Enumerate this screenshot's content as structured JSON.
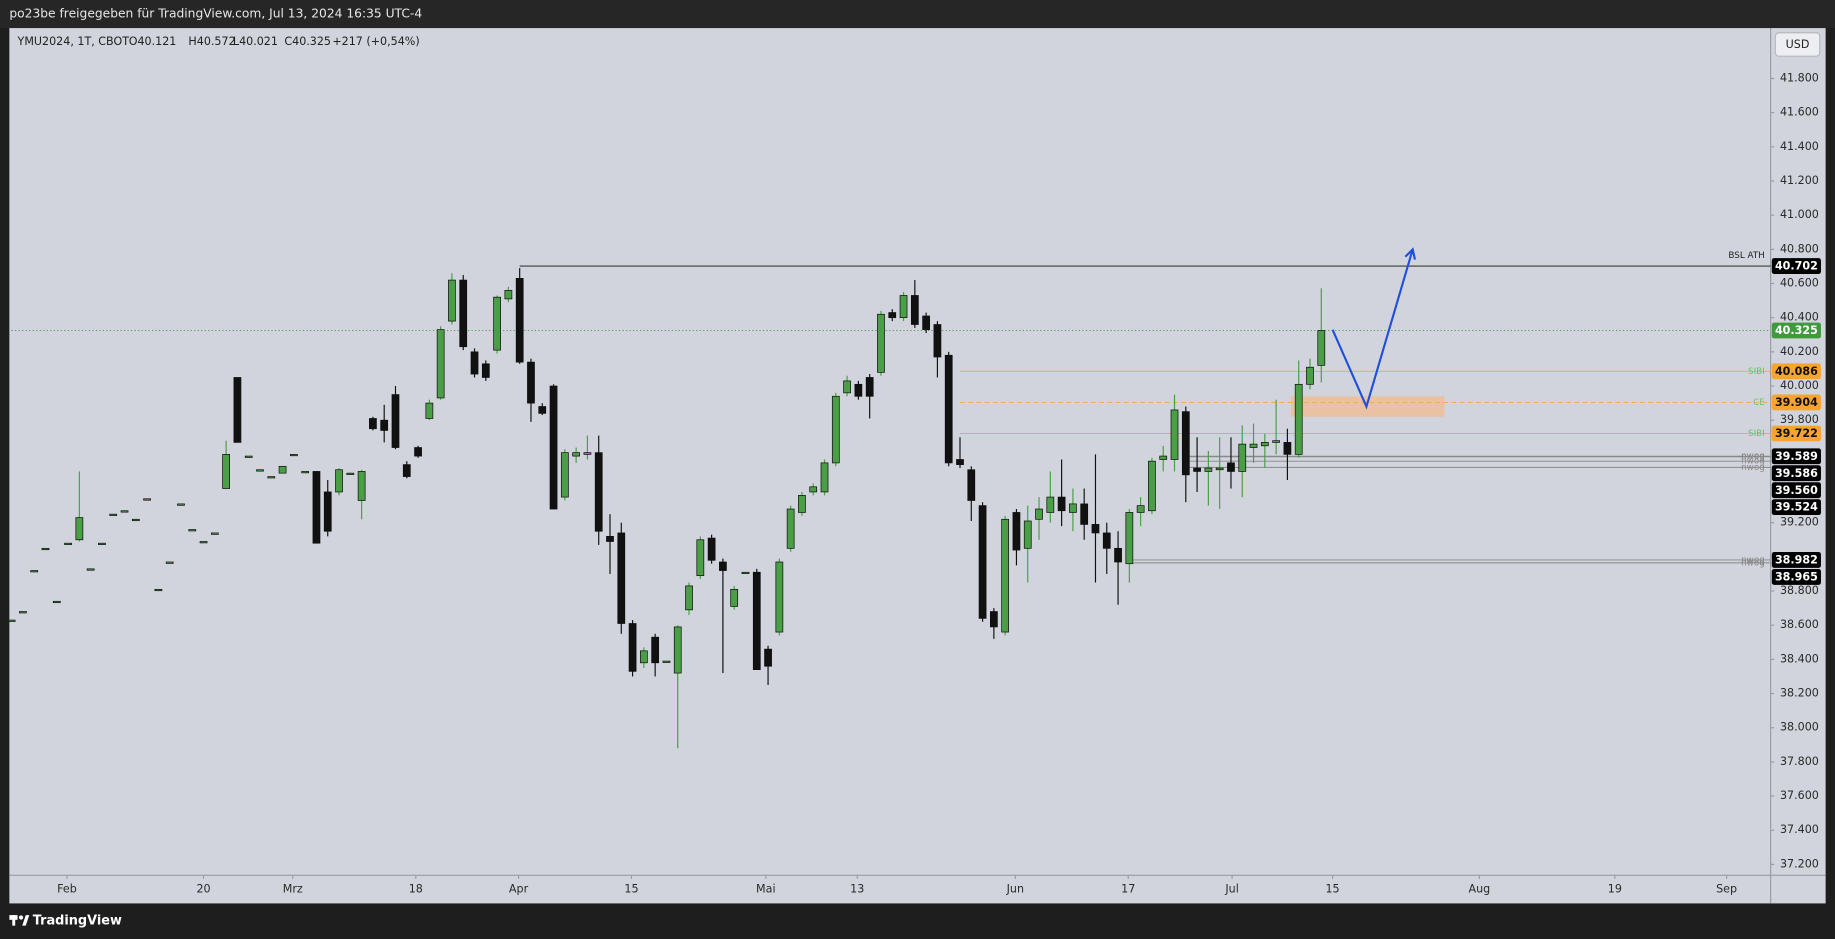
{
  "header": {
    "title": "po23be freigegeben für TradingView.com, Jul 13, 2024 16:35 UTC-4",
    "symbol": "YMU2024, 1T, CBOT",
    "ohlc": [
      "O40.121",
      "H40.572",
      "L40.021",
      "C40.325",
      "+217 (+0,54%)"
    ],
    "currency": "USD"
  },
  "footer": {
    "brand": "TradingView"
  },
  "chart_data": {
    "type": "candlestick",
    "up_color": "#4a9e45",
    "down_color": "#111111",
    "x": [
      0,
      1,
      2,
      3,
      4,
      5,
      6,
      7,
      8,
      9,
      10,
      11,
      12,
      13,
      14,
      15,
      16,
      17,
      18,
      19,
      20,
      21,
      22,
      23,
      24,
      25,
      26,
      27,
      28,
      29,
      30,
      31,
      32,
      33,
      34,
      35,
      36,
      37,
      38,
      39,
      40,
      41,
      42,
      43,
      44,
      45,
      46,
      47,
      48,
      49,
      50,
      51,
      52,
      53,
      54,
      55,
      56,
      57,
      58,
      59,
      60,
      61,
      62,
      63,
      64,
      65,
      66,
      67,
      68,
      69,
      70,
      71,
      72,
      73,
      74,
      75,
      76,
      77,
      78,
      79,
      80,
      81,
      82,
      83,
      84,
      85,
      86,
      87,
      88,
      89,
      90,
      91,
      92,
      93,
      94,
      95,
      96,
      97,
      98,
      99,
      100,
      101,
      102,
      103,
      104,
      105,
      106,
      107,
      108,
      109,
      110,
      111,
      112,
      113,
      114,
      115,
      116
    ],
    "open": [
      38.63,
      38.68,
      38.92,
      39.05,
      38.74,
      39.08,
      39.1,
      38.93,
      39.08,
      39.25,
      39.27,
      39.22,
      39.34,
      38.81,
      38.97,
      39.31,
      39.16,
      39.09,
      39.14,
      39.4,
      40.05,
      39.59,
      39.51,
      39.47,
      39.49,
      39.6,
      39.5,
      39.5,
      39.38,
      39.38,
      39.49,
      39.33,
      39.81,
      39.8,
      39.95,
      39.54,
      39.64,
      39.81,
      39.93,
      40.38,
      40.62,
      40.2,
      40.13,
      40.21,
      40.51,
      40.63,
      40.14,
      39.88,
      40.0,
      39.35,
      39.59,
      39.6,
      39.61,
      39.12,
      39.14,
      38.61,
      38.38,
      38.53,
      38.39,
      38.32,
      38.69,
      38.89,
      39.11,
      38.97,
      38.71,
      38.91,
      38.91,
      38.46,
      38.56,
      39.05,
      39.26,
      39.38,
      39.38,
      39.55,
      39.96,
      40.01,
      40.05,
      40.08,
      40.43,
      40.4,
      40.53,
      40.41,
      40.36,
      40.18,
      39.57,
      39.51,
      39.3,
      38.68,
      38.56,
      39.26,
      39.05,
      39.22,
      39.26,
      39.35,
      39.26,
      39.31,
      39.19,
      39.14,
      39.05,
      38.96,
      39.26,
      39.27,
      39.57,
      39.57,
      39.85,
      39.52,
      39.5,
      39.51,
      39.55,
      39.5,
      39.64,
      39.65,
      39.67,
      39.67,
      39.6,
      40.01,
      40.121
    ],
    "high": [
      38.63,
      38.68,
      38.92,
      39.05,
      38.74,
      39.08,
      39.5,
      38.93,
      39.08,
      39.25,
      39.27,
      39.22,
      39.34,
      38.81,
      38.97,
      39.31,
      39.16,
      39.09,
      39.14,
      39.68,
      40.05,
      39.59,
      39.51,
      39.47,
      39.53,
      39.6,
      39.5,
      39.5,
      39.45,
      39.52,
      39.49,
      39.51,
      39.82,
      39.89,
      40.0,
      39.56,
      39.65,
      39.92,
      40.35,
      40.66,
      40.65,
      40.22,
      40.15,
      40.53,
      40.58,
      40.69,
      40.16,
      39.9,
      40.01,
      39.63,
      39.64,
      39.71,
      39.71,
      39.25,
      39.2,
      38.63,
      38.47,
      38.55,
      38.39,
      38.6,
      38.85,
      39.12,
      39.13,
      38.99,
      38.83,
      38.91,
      38.93,
      38.48,
      38.99,
      39.3,
      39.38,
      39.43,
      39.57,
      39.96,
      40.06,
      40.03,
      40.07,
      40.44,
      40.45,
      40.55,
      40.62,
      40.43,
      40.38,
      40.2,
      39.7,
      39.53,
      39.32,
      38.7,
      39.24,
      39.28,
      39.3,
      39.35,
      39.5,
      39.57,
      39.4,
      39.4,
      39.6,
      39.2,
      39.15,
      39.28,
      39.35,
      39.58,
      39.65,
      39.95,
      39.88,
      39.7,
      39.62,
      39.7,
      39.7,
      39.77,
      39.78,
      39.72,
      39.92,
      39.75,
      40.15,
      40.16,
      40.572
    ],
    "low": [
      38.63,
      38.68,
      38.92,
      39.05,
      38.74,
      39.08,
      39.09,
      38.93,
      39.08,
      39.25,
      39.27,
      39.22,
      39.34,
      38.81,
      38.97,
      39.31,
      39.16,
      39.09,
      39.14,
      39.4,
      39.67,
      39.59,
      39.51,
      39.47,
      39.49,
      39.6,
      39.5,
      39.08,
      39.12,
      39.36,
      39.49,
      39.22,
      39.74,
      39.67,
      39.63,
      39.46,
      39.58,
      39.8,
      39.92,
      40.36,
      40.21,
      40.05,
      40.03,
      40.19,
      40.49,
      40.13,
      39.79,
      39.83,
      39.28,
      39.33,
      39.55,
      39.57,
      39.07,
      38.9,
      38.55,
      38.3,
      38.35,
      38.3,
      38.39,
      37.88,
      38.66,
      38.87,
      38.96,
      38.32,
      38.69,
      38.91,
      38.34,
      38.25,
      38.54,
      39.03,
      39.24,
      39.36,
      39.36,
      39.53,
      39.94,
      39.92,
      39.81,
      40.06,
      40.38,
      40.38,
      40.34,
      40.31,
      40.05,
      39.53,
      39.52,
      39.21,
      38.62,
      38.52,
      38.54,
      38.95,
      38.85,
      39.1,
      39.2,
      39.18,
      39.15,
      39.1,
      38.85,
      38.9,
      38.72,
      38.85,
      39.18,
      39.25,
      39.5,
      39.5,
      39.32,
      39.38,
      39.3,
      39.28,
      39.4,
      39.35,
      39.55,
      39.52,
      39.6,
      39.45,
      39.58,
      39.98,
      40.021
    ],
    "close": [
      38.63,
      38.68,
      38.92,
      39.05,
      38.74,
      39.08,
      39.23,
      38.93,
      39.08,
      39.25,
      39.27,
      39.22,
      39.34,
      38.81,
      38.97,
      39.31,
      39.16,
      39.09,
      39.14,
      39.6,
      39.67,
      39.59,
      39.51,
      39.47,
      39.53,
      39.6,
      39.5,
      39.08,
      39.15,
      39.51,
      39.49,
      39.5,
      39.75,
      39.74,
      39.64,
      39.47,
      39.59,
      39.9,
      40.33,
      40.62,
      40.23,
      40.07,
      40.05,
      40.52,
      40.56,
      40.14,
      39.9,
      39.84,
      39.28,
      39.61,
      39.61,
      39.61,
      39.15,
      39.09,
      38.61,
      38.33,
      38.45,
      38.38,
      38.39,
      38.59,
      38.83,
      39.1,
      38.98,
      38.92,
      38.81,
      38.91,
      38.34,
      38.36,
      38.97,
      39.28,
      39.36,
      39.41,
      39.55,
      39.94,
      40.03,
      39.94,
      39.94,
      40.42,
      40.4,
      40.53,
      40.36,
      40.33,
      40.17,
      39.55,
      39.54,
      39.33,
      38.64,
      38.59,
      39.22,
      39.04,
      39.21,
      39.28,
      39.35,
      39.27,
      39.31,
      39.19,
      39.14,
      39.05,
      38.97,
      39.26,
      39.3,
      39.56,
      39.59,
      39.86,
      39.48,
      39.5,
      39.52,
      39.52,
      39.5,
      39.66,
      39.66,
      39.67,
      39.68,
      39.6,
      40.01,
      40.11,
      40.325
    ],
    "xlim": [
      -0.2,
      155.8
    ],
    "xticks": [
      {
        "value": 4.9,
        "label": "Feb"
      },
      {
        "value": 17.0,
        "label": "20"
      },
      {
        "value": 24.9,
        "label": "Mrz"
      },
      {
        "value": 35.8,
        "label": "18"
      },
      {
        "value": 44.9,
        "label": "Apr"
      },
      {
        "value": 54.9,
        "label": "15"
      },
      {
        "value": 66.8,
        "label": "Mai"
      },
      {
        "value": 74.9,
        "label": "13"
      },
      {
        "value": 88.9,
        "label": "Jun"
      },
      {
        "value": 98.9,
        "label": "17"
      },
      {
        "value": 108.1,
        "label": "Jul"
      },
      {
        "value": 117.0,
        "label": "15"
      },
      {
        "value": 130.0,
        "label": "Aug"
      },
      {
        "value": 142.0,
        "label": "19"
      },
      {
        "value": 151.9,
        "label": "Sep"
      }
    ],
    "ylim": [
      37.136,
      42.095
    ],
    "yticks": [
      {
        "value": 41.8,
        "label": "41.800"
      },
      {
        "value": 41.6,
        "label": "41.600"
      },
      {
        "value": 41.4,
        "label": "41.400"
      },
      {
        "value": 41.2,
        "label": "41.200"
      },
      {
        "value": 41.0,
        "label": "41.000"
      },
      {
        "value": 40.8,
        "label": "40.800"
      },
      {
        "value": 40.6,
        "label": "40.600"
      },
      {
        "value": 40.4,
        "label": "40.400"
      },
      {
        "value": 40.2,
        "label": "40.200"
      },
      {
        "value": 40.0,
        "label": "40.000"
      },
      {
        "value": 39.8,
        "label": "39.800"
      },
      {
        "value": 39.2,
        "label": "39.200"
      },
      {
        "value": 38.8,
        "label": "38.800"
      },
      {
        "value": 38.6,
        "label": "38.600"
      },
      {
        "value": 38.4,
        "label": "38.400"
      },
      {
        "value": 38.2,
        "label": "38.200"
      },
      {
        "value": 38.0,
        "label": "38.000"
      },
      {
        "value": 37.8,
        "label": "37.800"
      },
      {
        "value": 37.6,
        "label": "37.600"
      },
      {
        "value": 37.4,
        "label": "37.400"
      },
      {
        "value": 37.2,
        "label": "37.200"
      }
    ],
    "levels": [
      {
        "name": "BSL ATH",
        "value": 40.702,
        "label": "40.702",
        "start": 45,
        "color": "#111111",
        "style": "solid",
        "name_color": "#222222",
        "badge": "#000000",
        "badge_text": "#ffffff"
      },
      {
        "value": 40.325,
        "label": "40.325",
        "start": 0,
        "color": "#4a9e45",
        "style": "dotted",
        "badge": "#3f9a3c",
        "badge_text": "#ffffff"
      },
      {
        "name": "SIBI",
        "value": 40.086,
        "label": "40.086",
        "start": 84,
        "color": "#f3a74a",
        "style": "solid",
        "name_color": "#6fbf6a",
        "badge": "#f7a530",
        "badge_text": "#111111"
      },
      {
        "name": "CE",
        "value": 39.904,
        "label": "39.904",
        "start": 84,
        "color": "#f3a74a",
        "style": "dashed",
        "name_color": "#6fbf6a",
        "badge": "#f7a530",
        "badge_text": "#111111"
      },
      {
        "name": "SIBI",
        "value": 39.722,
        "label": "39.722",
        "start": 84,
        "color": "#f3a74a",
        "style": "solid",
        "name_color": "#6fbf6a",
        "badge": "#f7a530",
        "badge_text": "#111111"
      },
      {
        "name": "nwog",
        "value": 39.589,
        "label": "39.589",
        "start": 104,
        "color": "#888888",
        "style": "solid",
        "name_color": "#888888",
        "badge": "#000000",
        "badge_text": "#ffffff"
      },
      {
        "name": "nwog",
        "value": 39.586,
        "label": "39.586",
        "start": 104,
        "color": "#888888",
        "style": "solid",
        "name_color": "#888888",
        "badge": "#000000",
        "badge_text": "#ffffff"
      },
      {
        "name": "nwog",
        "value": 39.56,
        "label": "39.560",
        "start": 104,
        "color": "#888888",
        "style": "solid",
        "name_color": "#888888",
        "badge": "#000000",
        "badge_text": "#ffffff"
      },
      {
        "name": "nwog",
        "value": 39.524,
        "label": "39.524",
        "start": 104,
        "color": "#888888",
        "style": "solid",
        "name_color": "#888888",
        "badge": "#000000",
        "badge_text": "#ffffff"
      },
      {
        "name": "nwog",
        "value": 38.982,
        "label": "38.982",
        "start": 99,
        "color": "#888888",
        "style": "solid",
        "name_color": "#888888",
        "badge": "#000000",
        "badge_text": "#ffffff"
      },
      {
        "name": "nwog",
        "value": 38.965,
        "label": "38.965",
        "start": 99,
        "color": "#888888",
        "style": "solid",
        "name_color": "#888888",
        "badge": "#000000",
        "badge_text": "#ffffff"
      }
    ],
    "zone": {
      "x": [
        113.3,
        126.9
      ],
      "y": [
        39.82,
        39.94
      ],
      "color": "#f5b98a"
    },
    "projection": {
      "x": [
        117.0,
        120.0,
        124.1
      ],
      "y": [
        40.33,
        39.88,
        40.8
      ],
      "color": "#1f4fd8"
    }
  }
}
